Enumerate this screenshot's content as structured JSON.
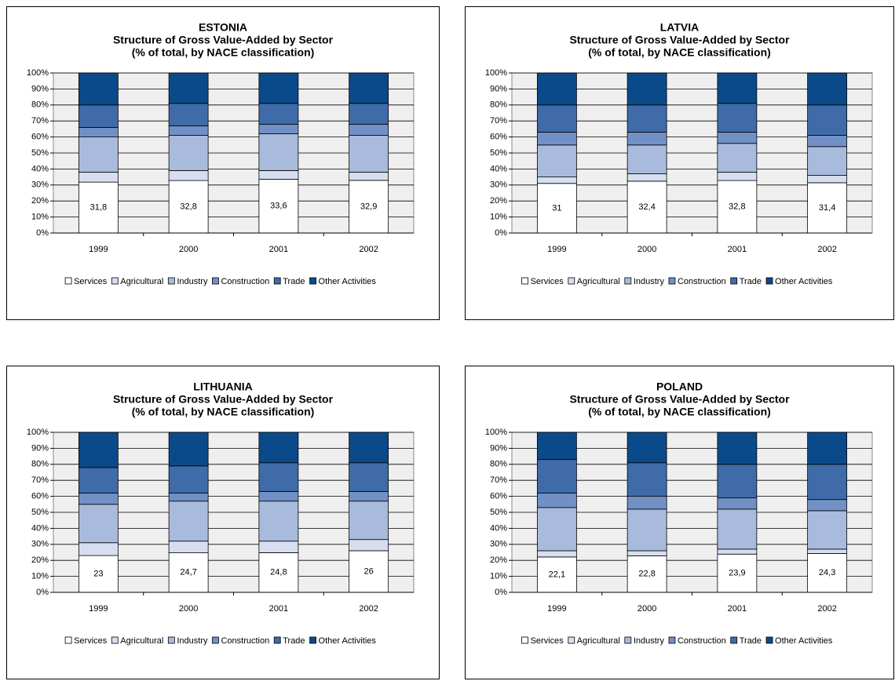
{
  "chart_data": [
    {
      "type": "stacked_bar",
      "title": "ESTONIA",
      "subtitle": [
        "Structure of Gross Value-Added by Sector",
        "(% of total, by NACE classification)"
      ],
      "categories": [
        "1999",
        "2000",
        "2001",
        "2002"
      ],
      "series": [
        {
          "name": "Services",
          "color": "#ffffff",
          "values": [
            31.8,
            32.8,
            33.6,
            32.9
          ],
          "value_labels": [
            "31,8",
            "32,8",
            "33,6",
            "32,9"
          ]
        },
        {
          "name": "Agricultural",
          "color": "#d6def0",
          "values": [
            6.2,
            6.2,
            5.4,
            5.1
          ]
        },
        {
          "name": "Industry",
          "color": "#a9bbdc",
          "values": [
            22,
            22,
            23,
            23
          ]
        },
        {
          "name": "Construction",
          "color": "#7191c6",
          "values": [
            6,
            6,
            6,
            7
          ]
        },
        {
          "name": "Trade",
          "color": "#3f6ca8",
          "values": [
            14,
            14,
            13,
            13
          ]
        },
        {
          "name": "Other Activities",
          "color": "#0b4a8a",
          "values": [
            20,
            19,
            19,
            19
          ]
        }
      ],
      "ylim": [
        0,
        100
      ],
      "yticks": [
        {
          "value": 0,
          "label": "0%"
        },
        {
          "value": 10,
          "label": "10%"
        },
        {
          "value": 20,
          "label": "20%"
        },
        {
          "value": 30,
          "label": "30%"
        },
        {
          "value": 40,
          "label": "40%"
        },
        {
          "value": 50,
          "label": "50%"
        },
        {
          "value": 60,
          "label": "60%"
        },
        {
          "value": 70,
          "label": "70%"
        },
        {
          "value": 80,
          "label": "80%"
        },
        {
          "value": 90,
          "label": "90%"
        },
        {
          "value": 100,
          "label": "100%"
        }
      ],
      "grid": true,
      "legend": "bottom"
    },
    {
      "type": "stacked_bar",
      "title": "LATVIA",
      "subtitle": [
        "Structure of Gross Value-Added by Sector",
        "(% of total, by NACE classification)"
      ],
      "categories": [
        "1999",
        "2000",
        "2001",
        "2002"
      ],
      "series": [
        {
          "name": "Services",
          "color": "#ffffff",
          "values": [
            31,
            32.4,
            32.8,
            31.4
          ],
          "value_labels": [
            "31",
            "32,4",
            "32,8",
            "31,4"
          ]
        },
        {
          "name": "Agricultural",
          "color": "#d6def0",
          "values": [
            4,
            4.6,
            5.2,
            4.6
          ]
        },
        {
          "name": "Industry",
          "color": "#a9bbdc",
          "values": [
            20,
            18,
            18,
            18
          ]
        },
        {
          "name": "Construction",
          "color": "#7191c6",
          "values": [
            8,
            8,
            7,
            7
          ]
        },
        {
          "name": "Trade",
          "color": "#3f6ca8",
          "values": [
            17,
            17,
            18,
            19
          ]
        },
        {
          "name": "Other Activities",
          "color": "#0b4a8a",
          "values": [
            20,
            20,
            19,
            20
          ]
        }
      ],
      "ylim": [
        0,
        100
      ],
      "yticks": [
        {
          "value": 0,
          "label": "0%"
        },
        {
          "value": 10,
          "label": "10%"
        },
        {
          "value": 20,
          "label": "20%"
        },
        {
          "value": 30,
          "label": "30%"
        },
        {
          "value": 40,
          "label": "40%"
        },
        {
          "value": 50,
          "label": "50%"
        },
        {
          "value": 60,
          "label": "60%"
        },
        {
          "value": 70,
          "label": "70%"
        },
        {
          "value": 80,
          "label": "80%"
        },
        {
          "value": 90,
          "label": "90%"
        },
        {
          "value": 100,
          "label": "100%"
        }
      ],
      "grid": true,
      "legend": "bottom"
    },
    {
      "type": "stacked_bar",
      "title": "LITHUANIA",
      "subtitle": [
        "Structure of Gross Value-Added by Sector",
        "(% of total, by NACE classification)"
      ],
      "categories": [
        "1999",
        "2000",
        "2001",
        "2002"
      ],
      "series": [
        {
          "name": "Services",
          "color": "#ffffff",
          "values": [
            23,
            24.7,
            24.8,
            26
          ],
          "value_labels": [
            "23",
            "24,7",
            "24,8",
            "26"
          ]
        },
        {
          "name": "Agricultural",
          "color": "#d6def0",
          "values": [
            8,
            7.3,
            7.2,
            7
          ]
        },
        {
          "name": "Industry",
          "color": "#a9bbdc",
          "values": [
            24,
            25,
            25,
            24
          ]
        },
        {
          "name": "Construction",
          "color": "#7191c6",
          "values": [
            7,
            5,
            6,
            6
          ]
        },
        {
          "name": "Trade",
          "color": "#3f6ca8",
          "values": [
            16,
            17,
            18,
            18
          ]
        },
        {
          "name": "Other Activities",
          "color": "#0b4a8a",
          "values": [
            22,
            21,
            19,
            19
          ]
        }
      ],
      "ylim": [
        0,
        100
      ],
      "yticks": [
        {
          "value": 0,
          "label": "0%"
        },
        {
          "value": 10,
          "label": "10%"
        },
        {
          "value": 20,
          "label": "20%"
        },
        {
          "value": 30,
          "label": "30%"
        },
        {
          "value": 40,
          "label": "40%"
        },
        {
          "value": 50,
          "label": "50%"
        },
        {
          "value": 60,
          "label": "60%"
        },
        {
          "value": 70,
          "label": "70%"
        },
        {
          "value": 80,
          "label": "80%"
        },
        {
          "value": 90,
          "label": "90%"
        },
        {
          "value": 100,
          "label": "100%"
        }
      ],
      "grid": true,
      "legend": "bottom"
    },
    {
      "type": "stacked_bar",
      "title": "POLAND",
      "subtitle": [
        "Structure of Gross Value-Added by Sector",
        "(% of total, by NACE classification)"
      ],
      "categories": [
        "1999",
        "2000",
        "2001",
        "2002"
      ],
      "series": [
        {
          "name": "Services",
          "color": "#ffffff",
          "values": [
            22.1,
            22.8,
            23.9,
            24.3
          ],
          "value_labels": [
            "22,1",
            "22,8",
            "23,9",
            "24,3"
          ]
        },
        {
          "name": "Agricultural",
          "color": "#d6def0",
          "values": [
            3.9,
            3.2,
            3.1,
            2.7
          ]
        },
        {
          "name": "Industry",
          "color": "#a9bbdc",
          "values": [
            27,
            26,
            25,
            24
          ]
        },
        {
          "name": "Construction",
          "color": "#7191c6",
          "values": [
            9,
            8,
            7,
            7
          ]
        },
        {
          "name": "Trade",
          "color": "#3f6ca8",
          "values": [
            21,
            21,
            21,
            22
          ]
        },
        {
          "name": "Other Activities",
          "color": "#0b4a8a",
          "values": [
            17,
            19,
            20,
            20
          ]
        }
      ],
      "ylim": [
        0,
        100
      ],
      "yticks": [
        {
          "value": 0,
          "label": "0%"
        },
        {
          "value": 10,
          "label": "10%"
        },
        {
          "value": 20,
          "label": "20%"
        },
        {
          "value": 30,
          "label": "30%"
        },
        {
          "value": 40,
          "label": "40%"
        },
        {
          "value": 50,
          "label": "50%"
        },
        {
          "value": 60,
          "label": "60%"
        },
        {
          "value": 70,
          "label": "70%"
        },
        {
          "value": 80,
          "label": "80%"
        },
        {
          "value": 90,
          "label": "90%"
        },
        {
          "value": 100,
          "label": "100%"
        }
      ],
      "grid": true,
      "legend": "bottom"
    }
  ]
}
